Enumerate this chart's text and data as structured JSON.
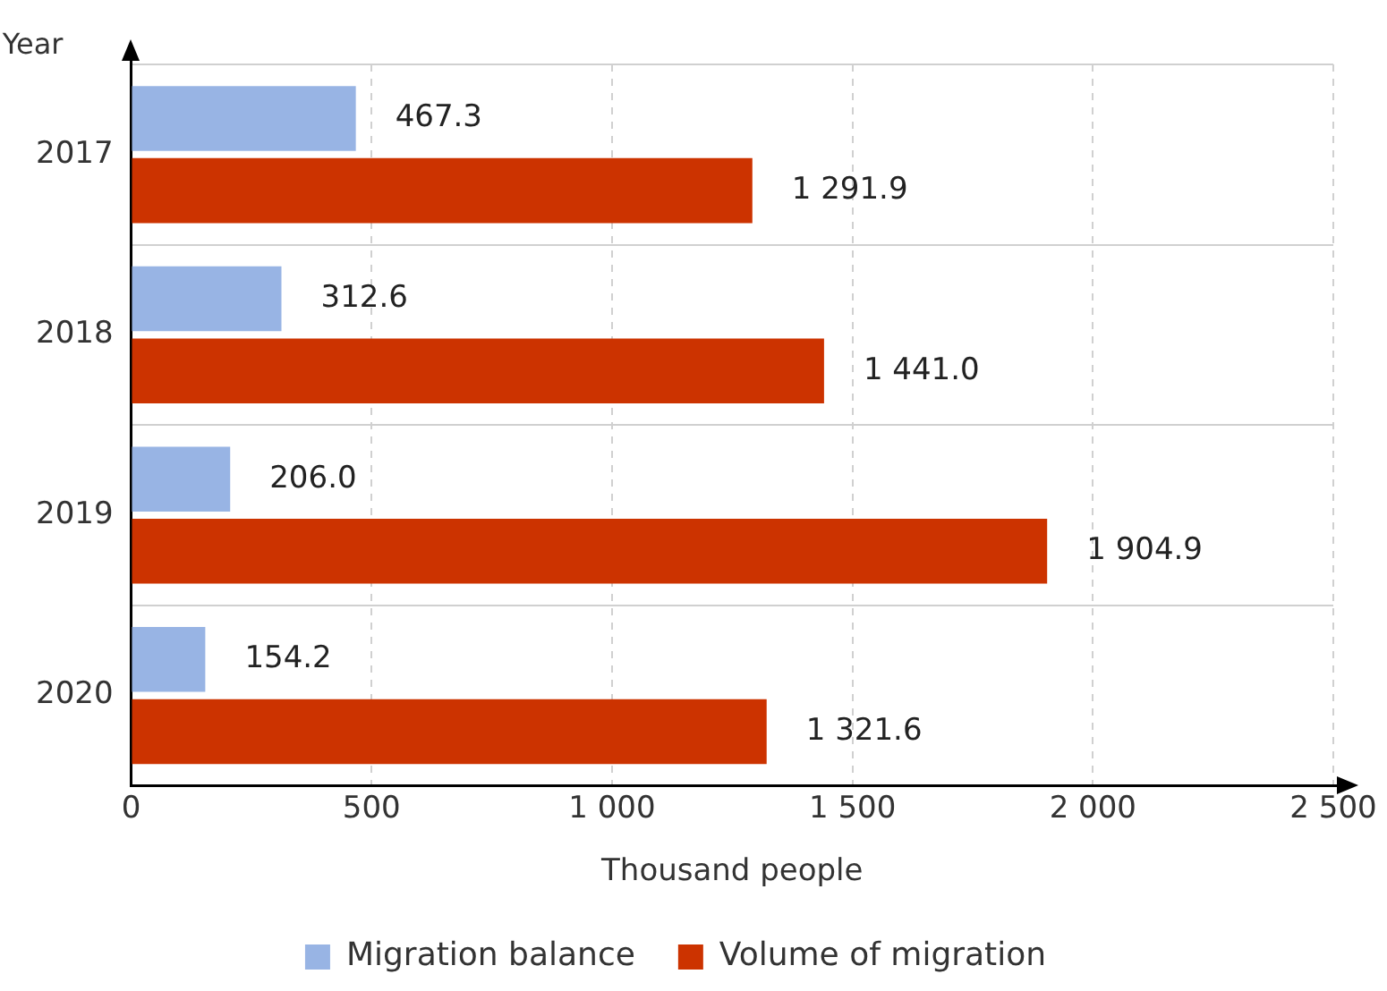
{
  "chart_data": {
    "type": "bar",
    "orientation": "horizontal",
    "xlabel": "Thousand people",
    "ylabel": "Year",
    "categories": [
      "2017",
      "2018",
      "2019",
      "2020"
    ],
    "series": [
      {
        "name": "Migration balance",
        "color": "#98b4e4",
        "values": [
          467.3,
          312.6,
          206.0,
          154.2
        ],
        "value_labels": [
          "467.3",
          "312.6",
          "206.0",
          "154.2"
        ]
      },
      {
        "name": "Volume of migration",
        "color": "#cc3300",
        "values": [
          1291.9,
          1441.0,
          1904.9,
          1321.6
        ],
        "value_labels": [
          "1 291.9",
          "1 441.0",
          "1 904.9",
          "1 321.6"
        ]
      }
    ],
    "xlim": [
      0,
      2500
    ],
    "xticks": [
      0,
      500,
      {
        "value": 1000,
        "label": "1 000"
      },
      {
        "value": 1500,
        "label": "1 500"
      },
      {
        "value": 2000,
        "label": "2 000"
      },
      {
        "value": 2500,
        "label": "2 500"
      }
    ],
    "grid": true,
    "legend": "bottom"
  }
}
